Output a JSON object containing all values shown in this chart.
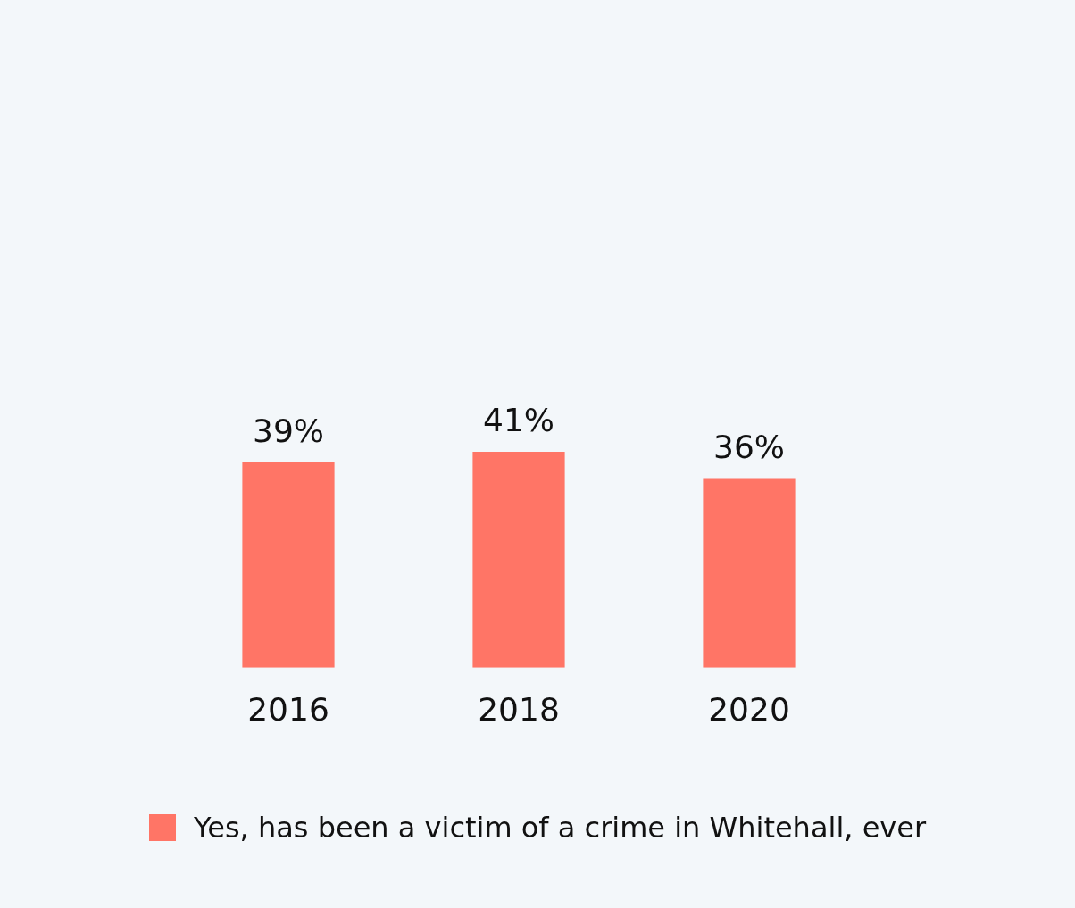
{
  "chart_data": {
    "type": "bar",
    "categories": [
      "2016",
      "2018",
      "2020"
    ],
    "series": [
      {
        "name": "Yes, has been a victim of a crime in Whitehall, ever",
        "color": "#ff7566",
        "values": [
          39,
          41,
          36
        ],
        "value_labels": [
          "39%",
          "41%",
          "36%"
        ]
      }
    ],
    "legend": "bottom",
    "grid": false
  }
}
